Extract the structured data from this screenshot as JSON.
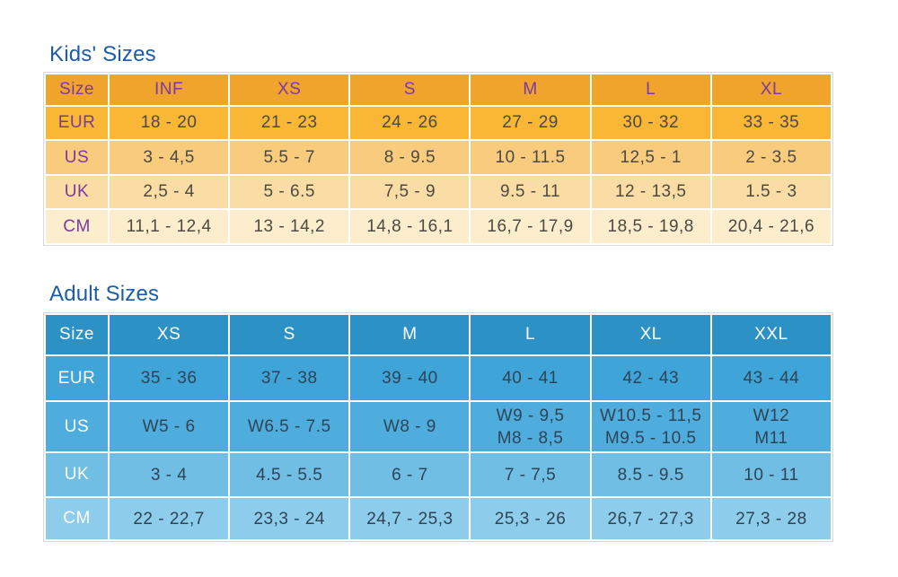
{
  "colors": {
    "title_blue": "#1d5ca9",
    "kids_header": "#f0a42c",
    "kids_rows": [
      "#f9b735",
      "#f8cb7d",
      "#fadda5",
      "#fceecd"
    ],
    "kids_label_text": "#7a3aa2",
    "kids_value_text": "#4d4942",
    "adult_header": "#2c92c5",
    "adult_rows": [
      "#3fa5d8",
      "#4fadde",
      "#71bee4",
      "#8dccea"
    ],
    "adult_label_text": "#ffffff",
    "adult_value_text": "#2e4456",
    "background": "#ffffff"
  },
  "chart_data": [
    {
      "type": "table",
      "title": "Kids' Sizes",
      "columns": [
        "Size",
        "INF",
        "XS",
        "S",
        "M",
        "L",
        "XL"
      ],
      "rows": [
        [
          "EUR",
          "18 - 20",
          "21 - 23",
          "24 - 26",
          "27 - 29",
          "30 - 32",
          "33 - 35"
        ],
        [
          "US",
          "3 - 4,5",
          "5.5 - 7",
          "8 - 9.5",
          "10 - 11.5",
          "12,5 - 1",
          "2 - 3.5"
        ],
        [
          "UK",
          "2,5 - 4",
          "5 - 6.5",
          "7,5 - 9",
          "9.5 - 11",
          "12 - 13,5",
          "1.5 - 3"
        ],
        [
          "CM",
          "11,1 - 12,4",
          "13 - 14,2",
          "14,8 - 16,1",
          "16,7 - 17,9",
          "18,5 - 19,8",
          "20,4 - 21,6"
        ]
      ]
    },
    {
      "type": "table",
      "title": "Adult Sizes",
      "columns": [
        "Size",
        "XS",
        "S",
        "M",
        "L",
        "XL",
        "XXL"
      ],
      "rows": [
        [
          "EUR",
          "35 - 36",
          "37 - 38",
          "39 - 40",
          "40 - 41",
          "42 - 43",
          "43 - 44"
        ],
        [
          "US",
          "W5 - 6",
          "W6.5 - 7.5",
          "W8 - 9",
          "W9 - 9,5\nM8 - 8,5",
          "W10.5 - 11,5\nM9.5 - 10.5",
          "W12\nM11"
        ],
        [
          "UK",
          "3 - 4",
          "4.5 - 5.5",
          "6 - 7",
          "7 - 7,5",
          "8.5 - 9.5",
          "10 - 11"
        ],
        [
          "CM",
          "22 - 22,7",
          "23,3 - 24",
          "24,7 - 25,3",
          "25,3 - 26",
          "26,7 - 27,3",
          "27,3 - 28"
        ]
      ]
    }
  ]
}
